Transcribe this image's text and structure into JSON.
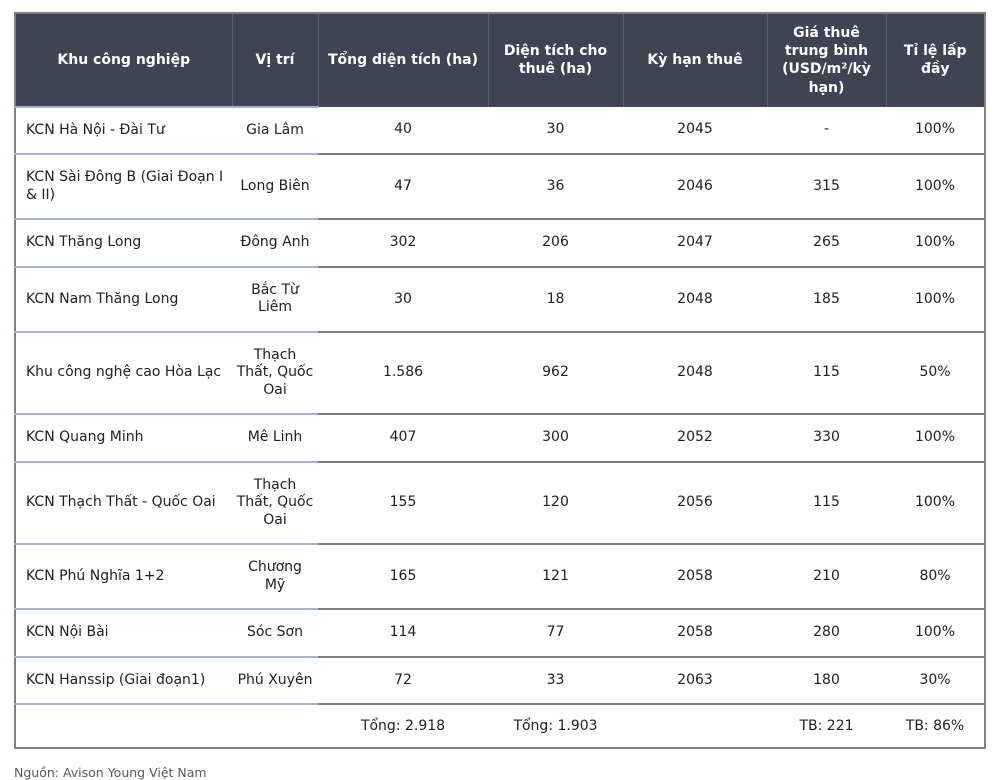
{
  "chart_data": {
    "type": "table",
    "title": "",
    "columns": [
      {
        "key": "name",
        "label": "Khu công nghiệp"
      },
      {
        "key": "location",
        "label": "Vị trí"
      },
      {
        "key": "total_area",
        "label": "Tổng diện tích (ha)"
      },
      {
        "key": "leasable_area",
        "label": "Diện tích cho thuê (ha)"
      },
      {
        "key": "lease_term",
        "label": "Kỳ hạn thuê"
      },
      {
        "key": "avg_rent",
        "label": "Giá thuê trung bình (USD/m²/kỳ hạn)"
      },
      {
        "key": "occupancy",
        "label": "Tỉ lệ lấp đầy"
      }
    ],
    "rows": [
      {
        "name": "KCN Hà Nội - Đài Tư",
        "location": "Gia Lâm",
        "total_area": "40",
        "leasable_area": "30",
        "lease_term": "2045",
        "avg_rent": "-",
        "occupancy": "100%"
      },
      {
        "name": "KCN Sài Đông B (Giai Đoạn I & II)",
        "location": "Long Biên",
        "total_area": "47",
        "leasable_area": "36",
        "lease_term": "2046",
        "avg_rent": "315",
        "occupancy": "100%"
      },
      {
        "name": "KCN Thăng Long",
        "location": "Đông Anh",
        "total_area": "302",
        "leasable_area": "206",
        "lease_term": "2047",
        "avg_rent": "265",
        "occupancy": "100%"
      },
      {
        "name": "KCN Nam Thăng Long",
        "location": "Bắc Từ Liêm",
        "total_area": "30",
        "leasable_area": "18",
        "lease_term": "2048",
        "avg_rent": "185",
        "occupancy": "100%"
      },
      {
        "name": "Khu công nghệ cao Hòa Lạc",
        "location": "Thạch Thất, Quốc Oai",
        "total_area": "1.586",
        "leasable_area": "962",
        "lease_term": "2048",
        "avg_rent": "115",
        "occupancy": "50%"
      },
      {
        "name": "KCN Quang Minh",
        "location": "Mê Linh",
        "total_area": "407",
        "leasable_area": "300",
        "lease_term": "2052",
        "avg_rent": "330",
        "occupancy": "100%"
      },
      {
        "name": "KCN Thạch Thất - Quốc Oai",
        "location": "Thạch Thất, Quốc Oai",
        "total_area": "155",
        "leasable_area": "120",
        "lease_term": "2056",
        "avg_rent": "115",
        "occupancy": "100%"
      },
      {
        "name": "KCN Phú Nghĩa 1+2",
        "location": "Chương Mỹ",
        "total_area": "165",
        "leasable_area": "121",
        "lease_term": "2058",
        "avg_rent": "210",
        "occupancy": "80%"
      },
      {
        "name": "KCN Nội Bài",
        "location": "Sóc Sơn",
        "total_area": "114",
        "leasable_area": "77",
        "lease_term": "2058",
        "avg_rent": "280",
        "occupancy": "100%"
      },
      {
        "name": "KCN Hanssip (Giai đoạn1)",
        "location": "Phú Xuyên",
        "total_area": "72",
        "leasable_area": "33",
        "lease_term": "2063",
        "avg_rent": "180",
        "occupancy": "30%"
      }
    ],
    "footer": {
      "name": "",
      "location": "",
      "total_area": "Tổng: 2.918",
      "leasable_area": "Tổng: 1.903",
      "lease_term": "",
      "avg_rent": "TB: 221",
      "occupancy": "TB: 86%"
    },
    "legend": null,
    "grid": "horizontal-lines"
  },
  "source_note": "Nguồn: Avison Young Việt Nam",
  "colors": {
    "header_bg": "#3E4454",
    "header_text": "#FFFFFF",
    "header_divider": "#5A6175",
    "border_gray": "#7F7F7F",
    "border_blue": "#A3B1DE",
    "body_text": "#212121",
    "source_text": "#595959"
  }
}
